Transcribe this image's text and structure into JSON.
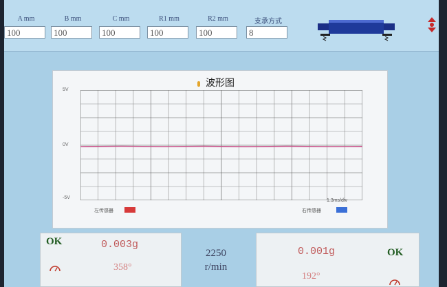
{
  "params": [
    {
      "label": "A mm",
      "value": "100"
    },
    {
      "label": "B mm",
      "value": "100"
    },
    {
      "label": "C mm",
      "value": "100"
    },
    {
      "label": "R1 mm",
      "value": "100"
    },
    {
      "label": "R2 mm",
      "value": "100"
    },
    {
      "label": "支承方式",
      "value": "8"
    }
  ],
  "icons": {
    "bearing": "bearing-support-icon",
    "nav": "nav-arrows-icon",
    "gauge": "gauge-icon"
  },
  "waveform": {
    "title": "波形图",
    "y_labels": {
      "top": "5V",
      "mid": "0V",
      "bottom": "-5V"
    },
    "scale": "1.3ms/div",
    "left_sensor": "左传感器",
    "right_sensor": "右传感器",
    "left_color": "#d73a3a",
    "right_color": "#3a6fd7"
  },
  "left_result": {
    "status": "OK",
    "value": "0.003g",
    "angle": "358°"
  },
  "right_result": {
    "status": "OK",
    "value": "0.001g",
    "angle": "192°"
  },
  "speed": {
    "value": "2250",
    "unit": "r/min"
  }
}
